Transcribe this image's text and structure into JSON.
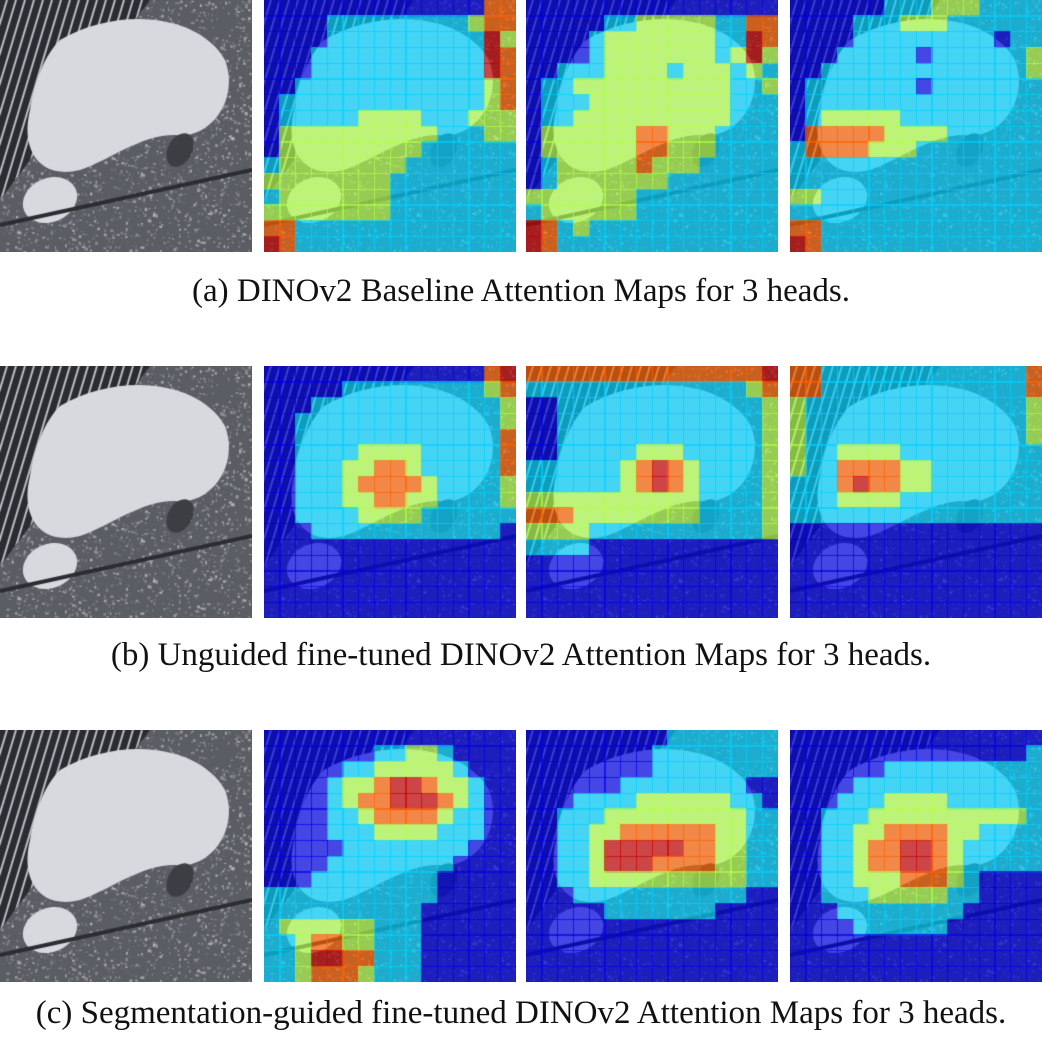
{
  "figure": {
    "panels": [
      {
        "caption": "(a) DINOv2 Baseline Attention Maps for 3 heads.",
        "heads": [
          [
            "0000000000000033",
            "0000111111111233",
            "0000111111111142",
            "0001111111111143",
            "0001111111111143",
            "0011111111111123",
            "0111111111111123",
            "0111112222111222",
            "0222222222211122",
            "0222222222111111",
            "1222222221111111",
            "2222222211111111",
            "1222222211111111",
            "2222222211111111",
            "3311111111111111",
            "4311111111111111"
          ],
          [
            "0000000000000000",
            "0000011222221133",
            "0000122222221143",
            "0000122222221242",
            "0011122221222121",
            "0112222222222112",
            "0111222222222111",
            "0112222222222111",
            "0222222332221111",
            "0222222332221111",
            "0122222322211111",
            "0122222221111111",
            "2222222111111111",
            "1222222111111111",
            "4312111111111111",
            "4311111111111111"
          ],
          [
            "0000001112221111",
            "0000111222111111",
            "0000111111111011",
            "0001111101111112",
            "0011111111111112",
            "0111111101111111",
            "0111111111111111",
            "0122222111111111",
            "0333332222111111",
            "1333322211111111",
            "1111111111111111",
            "1111111111111111",
            "2211111111111111",
            "1111111111111111",
            "3311111111111111",
            "4311111111111111"
          ]
        ]
      },
      {
        "caption": "(b) Unguided fine-tuned DINOv2 Attention Maps for 3 heads.",
        "heads": [
          [
            "0000000000000034",
            "0000011111111123",
            "0001111111111112",
            "0011111111111112",
            "0011111111111113",
            "0011112222111113",
            "0011122332111113",
            "0011123333211112",
            "0011122332211112",
            "0011112222111111",
            "0001111111111110",
            "0000000000000000",
            "0000000000000000",
            "0000000000000000",
            "0000000000000000",
            "0000000000000000"
          ],
          [
            "3333333333333334",
            "1111111111111123",
            "0011111111111112",
            "0011111111111112",
            "0011111111111112",
            "0011111222111112",
            "1111112343211112",
            "1111112343211112",
            "2222222222211112",
            "3332222222211112",
            "2222111111111112",
            "1111000000000000",
            "0000000000000000",
            "0000000000000000",
            "0000000000000000",
            "0000000000000000"
          ],
          [
            "3311111111111113",
            "3311111111111113",
            "2111111111111112",
            "2111111111111112",
            "2111111111111112",
            "2112222111111111",
            "2113333221111111",
            "1113433221111111",
            "1112222111111111",
            "1111111111111111",
            "0000000000000000",
            "0000000000000000",
            "0000000000000000",
            "0000000000000000",
            "0000000000000000",
            "0000000000000000"
          ]
        ]
      },
      {
        "caption": "(c) Segmentation-guided fine-tuned DINOv2 Attention Maps for 3 heads.",
        "heads": [
          [
            "0000000000000000",
            "0000000112210000",
            "0000011222221000",
            "0000122344322100",
            "0000123344432100",
            "0000112333321100",
            "0000111222211100",
            "0000011111111000",
            "0000111111110000",
            "0001111111100000",
            "1111111111100000",
            "1111111111000000",
            "1222222111000000",
            "1123322111000000",
            "1124433111000000",
            "1123332111000000"
          ],
          [
            "0000000001111111",
            "0000000011111111",
            "0000000011111111",
            "0000001111111100",
            "0001111222222110",
            "0011122222222211",
            "0011223333332211",
            "0011244444332211",
            "0011244433332211",
            "0011222222222211",
            "0001111111111100",
            "0000011111110000",
            "0000000000000000",
            "0000000000000000",
            "0000000000000000",
            "0000000000000000"
          ],
          [
            "0000000000000000",
            "0000000000000001",
            "0000001111111111",
            "0000111111111111",
            "0001112222111111",
            "0011122222222221",
            "0011223333221111",
            "0011233443211111",
            "0011233443211111",
            "0011222333210000",
            "0011122222110000",
            "0001111111100000",
            "0000111111000000",
            "0000000000000000",
            "0000000000000000",
            "0000000000000000"
          ]
        ]
      }
    ]
  }
}
